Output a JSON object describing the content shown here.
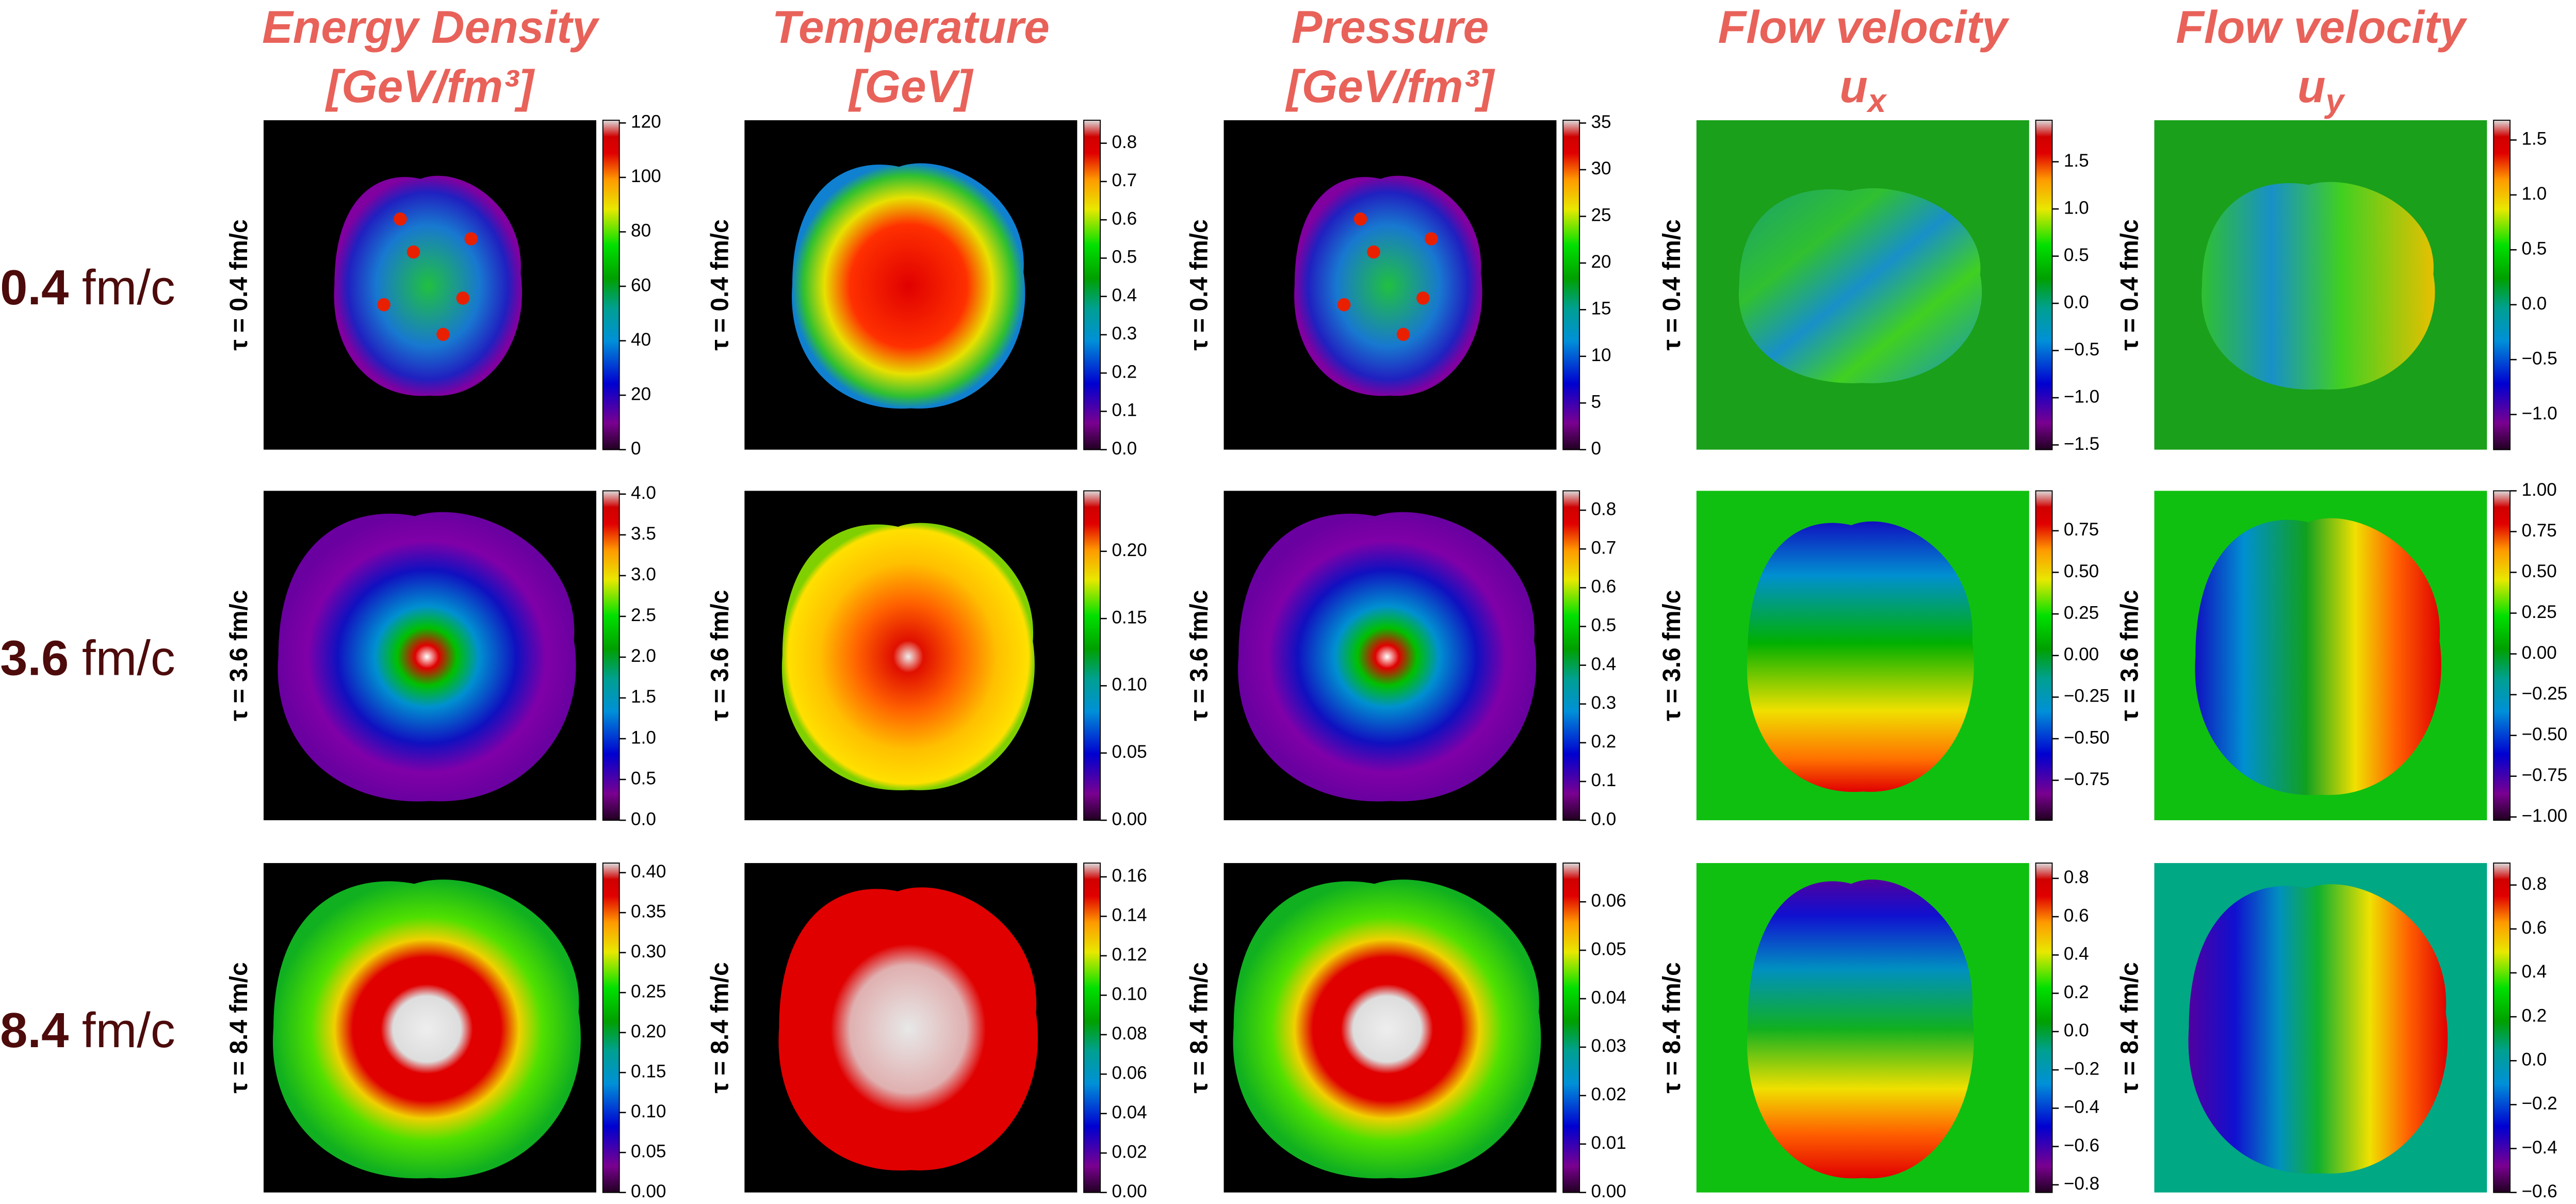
{
  "columns": [
    {
      "title": "Energy Density",
      "unit": "[GeV/fm³]"
    },
    {
      "title": "Temperature",
      "unit": "[GeV]"
    },
    {
      "title": "Pressure",
      "unit": "[GeV/fm³]"
    },
    {
      "title": "Flow velocity",
      "symbol": "u",
      "subscript": "x"
    },
    {
      "title": "Flow velocity",
      "symbol": "u",
      "subscript": "y"
    }
  ],
  "rows": [
    {
      "time": "0.4",
      "unit": "fm/c",
      "tau_label": "τ = 0.4 fm/c"
    },
    {
      "time": "3.6",
      "unit": "fm/c",
      "tau_label": "τ = 3.6 fm/c"
    },
    {
      "time": "8.4",
      "unit": "fm/c",
      "tau_label": "τ = 8.4 fm/c"
    }
  ],
  "panels": [
    [
      {
        "lim": [
          0,
          121
        ],
        "ticks": [
          0,
          20,
          40,
          60,
          80,
          100,
          120
        ]
      },
      {
        "lim": [
          0,
          0.86
        ],
        "ticks": [
          {
            "value": 0,
            "label": "0.0"
          },
          0.1,
          0.2,
          0.3,
          0.4,
          0.5,
          0.6,
          0.7,
          0.8
        ]
      },
      {
        "lim": [
          0,
          35.3
        ],
        "ticks": [
          0,
          5,
          10,
          15,
          20,
          25,
          30,
          35
        ]
      },
      {
        "lim": [
          -1.55,
          1.94
        ],
        "ticks": [
          {
            "value": -1.5,
            "label": "−1.5"
          },
          {
            "value": -1,
            "label": "−1.0"
          },
          {
            "value": -0.5,
            "label": "−0.5"
          },
          {
            "value": 0,
            "label": "0.0"
          },
          0.5,
          {
            "value": 1,
            "label": "1.0"
          },
          1.5
        ]
      },
      {
        "lim": [
          -1.32,
          1.68
        ],
        "ticks": [
          {
            "value": -1,
            "label": "−1.0"
          },
          {
            "value": -0.5,
            "label": "−0.5"
          },
          {
            "value": 0,
            "label": "0.0"
          },
          0.5,
          {
            "value": 1,
            "label": "1.0"
          },
          1.5
        ]
      }
    ],
    [
      {
        "lim": [
          0,
          4.04
        ],
        "ticks": [
          {
            "value": 0,
            "label": "0.0"
          },
          0.5,
          {
            "value": 1,
            "label": "1.0"
          },
          1.5,
          {
            "value": 2,
            "label": "2.0"
          },
          2.5,
          {
            "value": 3,
            "label": "3.0"
          },
          3.5,
          {
            "value": 4,
            "label": "4.0"
          }
        ]
      },
      {
        "lim": [
          0,
          0.245
        ],
        "ticks": [
          {
            "value": 0,
            "label": "0.00"
          },
          0.05,
          {
            "value": 0.1,
            "label": "0.10"
          },
          0.15,
          {
            "value": 0.2,
            "label": "0.20"
          }
        ]
      },
      {
        "lim": [
          0,
          0.85
        ],
        "ticks": [
          {
            "value": 0,
            "label": "0.0"
          },
          0.1,
          0.2,
          0.3,
          0.4,
          0.5,
          0.6,
          0.7,
          0.8
        ]
      },
      {
        "lim": [
          -0.99,
          0.99
        ],
        "ticks": [
          {
            "value": -0.75,
            "label": "−0.75"
          },
          {
            "value": -0.5,
            "label": "−0.50"
          },
          {
            "value": -0.25,
            "label": "−0.25"
          },
          {
            "value": 0,
            "label": "0.00"
          },
          0.25,
          {
            "value": 0.5,
            "label": "0.50"
          },
          0.75
        ]
      },
      {
        "lim": [
          -1.02,
          1.0
        ],
        "ticks": [
          {
            "value": -1,
            "label": "−1.00"
          },
          {
            "value": -0.75,
            "label": "−0.75"
          },
          {
            "value": -0.5,
            "label": "−0.50"
          },
          {
            "value": -0.25,
            "label": "−0.25"
          },
          {
            "value": 0,
            "label": "0.00"
          },
          0.25,
          {
            "value": 0.5,
            "label": "0.50"
          },
          0.75,
          {
            "value": 1,
            "label": "1.00"
          }
        ]
      }
    ],
    [
      {
        "lim": [
          0,
          0.412
        ],
        "ticks": [
          {
            "value": 0,
            "label": "0.00"
          },
          0.05,
          {
            "value": 0.1,
            "label": "0.10"
          },
          0.15,
          {
            "value": 0.2,
            "label": "0.20"
          },
          0.25,
          {
            "value": 0.3,
            "label": "0.30"
          },
          0.35,
          {
            "value": 0.4,
            "label": "0.40"
          }
        ]
      },
      {
        "lim": [
          0,
          0.167
        ],
        "ticks": [
          {
            "value": 0,
            "label": "0.00"
          },
          0.02,
          0.04,
          0.06,
          0.08,
          {
            "value": 0.1,
            "label": "0.10"
          },
          0.12,
          0.14,
          0.16
        ]
      },
      {
        "lim": [
          0,
          0.068
        ],
        "ticks": [
          {
            "value": 0,
            "label": "0.00"
          },
          0.01,
          0.02,
          0.03,
          0.04,
          0.05,
          0.06
        ]
      },
      {
        "lim": [
          -0.84,
          0.88
        ],
        "ticks": [
          {
            "value": -0.8,
            "label": "−0.8"
          },
          {
            "value": -0.6,
            "label": "−0.6"
          },
          {
            "value": -0.4,
            "label": "−0.4"
          },
          {
            "value": -0.2,
            "label": "−0.2"
          },
          {
            "value": 0,
            "label": "0.0"
          },
          0.2,
          0.4,
          0.6,
          0.8
        ]
      },
      {
        "lim": [
          -0.6,
          0.9
        ],
        "ticks": [
          {
            "value": -0.6,
            "label": "−0.6"
          },
          {
            "value": -0.4,
            "label": "−0.4"
          },
          {
            "value": -0.2,
            "label": "−0.2"
          },
          {
            "value": 0,
            "label": "0.0"
          },
          0.2,
          0.4,
          0.6,
          0.8
        ]
      }
    ]
  ]
}
